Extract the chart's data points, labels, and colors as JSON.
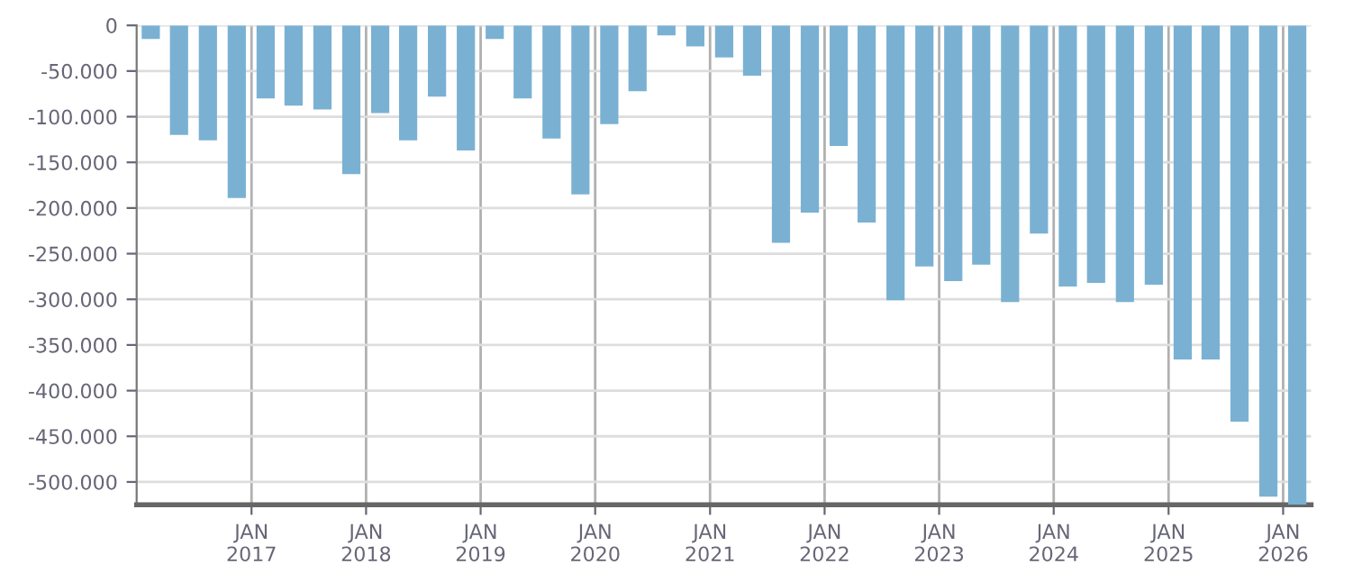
{
  "chart_data": {
    "type": "bar",
    "color": "#7ab1d3",
    "x": [
      "2016-02-15",
      "2016-05-15",
      "2016-08-15",
      "2016-11-15",
      "2017-02-15",
      "2017-05-15",
      "2017-08-15",
      "2017-11-15",
      "2018-02-15",
      "2018-05-15",
      "2018-08-15",
      "2018-11-15",
      "2019-02-15",
      "2019-05-15",
      "2019-08-15",
      "2019-11-15",
      "2020-02-15",
      "2020-05-15",
      "2020-08-15",
      "2020-11-15",
      "2021-02-15",
      "2021-05-15",
      "2021-08-15",
      "2021-11-15",
      "2022-02-15",
      "2022-05-15",
      "2022-08-15",
      "2022-11-15",
      "2023-02-15",
      "2023-05-15",
      "2023-08-15",
      "2023-11-15",
      "2024-02-15",
      "2024-05-15",
      "2024-08-15",
      "2024-11-15",
      "2025-02-15",
      "2025-05-15",
      "2025-08-15",
      "2025-11-15",
      "2026-02-15"
    ],
    "values": [
      -15000,
      -120000,
      -126000,
      -189000,
      -80000,
      -88000,
      -92000,
      -163000,
      -96000,
      -126000,
      -78000,
      -137000,
      -15000,
      -80000,
      -124000,
      -185000,
      -108000,
      -72000,
      -11000,
      -23000,
      -35000,
      -55000,
      -238000,
      -205000,
      -132000,
      -216000,
      -301000,
      -264000,
      -280000,
      -262000,
      -303000,
      -228000,
      -286000,
      -282000,
      -303000,
      -284000,
      -366000,
      -366000,
      -434000,
      -516000,
      -525000
    ],
    "xlim": [
      "2016-01-01",
      "2026-03-31"
    ],
    "xticks": [
      {
        "value": "2017-01-01",
        "label": "JAN\n2017"
      },
      {
        "value": "2018-01-01",
        "label": "JAN\n2018"
      },
      {
        "value": "2019-01-01",
        "label": "JAN\n2019"
      },
      {
        "value": "2020-01-01",
        "label": "JAN\n2020"
      },
      {
        "value": "2021-01-01",
        "label": "JAN\n2021"
      },
      {
        "value": "2022-01-01",
        "label": "JAN\n2022"
      },
      {
        "value": "2023-01-01",
        "label": "JAN\n2023"
      },
      {
        "value": "2024-01-01",
        "label": "JAN\n2024"
      },
      {
        "value": "2025-01-01",
        "label": "JAN\n2025"
      },
      {
        "value": "2026-01-01",
        "label": "JAN\n2026"
      }
    ],
    "ylim": [
      -525000,
      0
    ],
    "yticks": [
      0,
      {
        "value": -50000,
        "label": "-50.000"
      },
      {
        "value": -100000,
        "label": "-100.000"
      },
      {
        "value": -150000,
        "label": "-150.000"
      },
      {
        "value": -200000,
        "label": "-200.000"
      },
      {
        "value": -250000,
        "label": "-250.000"
      },
      {
        "value": -300000,
        "label": "-300.000"
      },
      {
        "value": -350000,
        "label": "-350.000"
      },
      {
        "value": -400000,
        "label": "-400.000"
      },
      {
        "value": -450000,
        "label": "-450.000"
      },
      {
        "value": -500000,
        "label": "-500.000"
      }
    ],
    "grid": true
  }
}
